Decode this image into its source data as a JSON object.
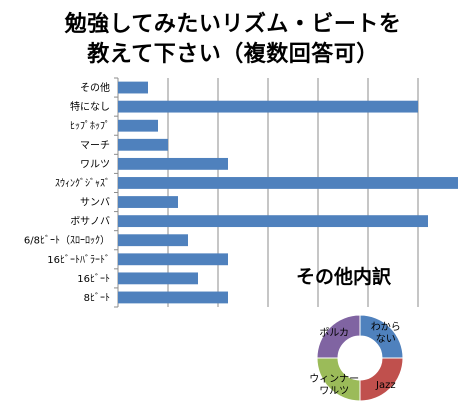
{
  "title_lines": [
    "勉強してみたいリズム・ビートを",
    "教えて下さい（複数回答可）"
  ],
  "chart_data": [
    {
      "type": "bar",
      "orientation": "horizontal",
      "title": "勉強してみたいリズム・ビートを教えて下さい（複数回答可）",
      "categories": [
        "その他",
        "特になし",
        "ﾋｯﾌﾟﾎｯﾌﾟ",
        "マーチ",
        "ワルツ",
        "ｽｳｨﾝｸﾞｼﾞｬｽﾞ",
        "サンバ",
        "ボサノバ",
        "6/8ﾋﾞｰﾄ（ｽﾛｰﾛｯｸ）",
        "16ﾋﾞｰﾄﾊﾞﾗｰﾄﾞ",
        "16ﾋﾞｰﾄ",
        "8ﾋﾞｰﾄ"
      ],
      "values": [
        3,
        30,
        4,
        5,
        11,
        34,
        6,
        31,
        7,
        11,
        8,
        11
      ],
      "xlim": [
        0,
        34
      ],
      "grid": true,
      "bar_color": "#4f81bd"
    },
    {
      "type": "pie",
      "style": "donut",
      "title": "その他内訳",
      "categories": [
        "わからない",
        "Jazz",
        "ウィンナーワルツ",
        "ポルカ"
      ],
      "labels": [
        [
          "わから",
          "ない"
        ],
        [
          "Jazz"
        ],
        [
          "ウィンナー",
          "ワルツ"
        ],
        [
          "ポルカ"
        ]
      ],
      "values": [
        1,
        1,
        1,
        1
      ],
      "colors": [
        "#4f81bd",
        "#c0504d",
        "#9bbb59",
        "#8064a2"
      ]
    }
  ]
}
